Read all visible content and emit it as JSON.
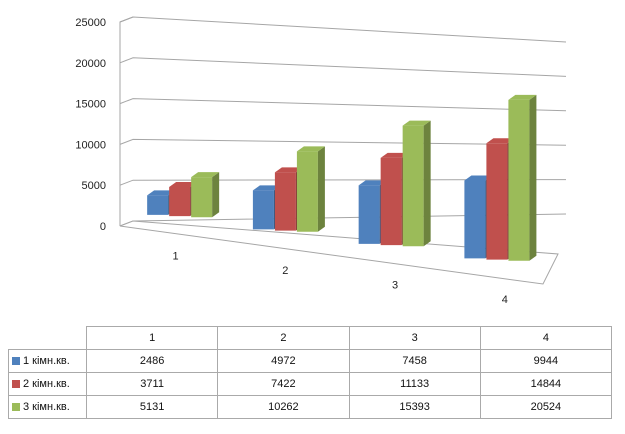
{
  "chart_data": {
    "type": "bar",
    "categories": [
      "1",
      "2",
      "3",
      "4"
    ],
    "series": [
      {
        "name": "1 кімн.кв.",
        "values": [
          2486,
          4972,
          7458,
          9944
        ],
        "color": "#4f81bd"
      },
      {
        "name": "2 кімн.кв.",
        "values": [
          3711,
          7422,
          11133,
          14844
        ],
        "color": "#c0504d"
      },
      {
        "name": "3 кімн.кв.",
        "values": [
          5131,
          10262,
          15393,
          20524
        ],
        "color": "#9bbb59"
      }
    ],
    "ylim": [
      0,
      25000
    ],
    "yticks": [
      "0",
      "5000",
      "10000",
      "15000",
      "20000",
      "25000"
    ],
    "grid": true,
    "legend": "data-table"
  }
}
